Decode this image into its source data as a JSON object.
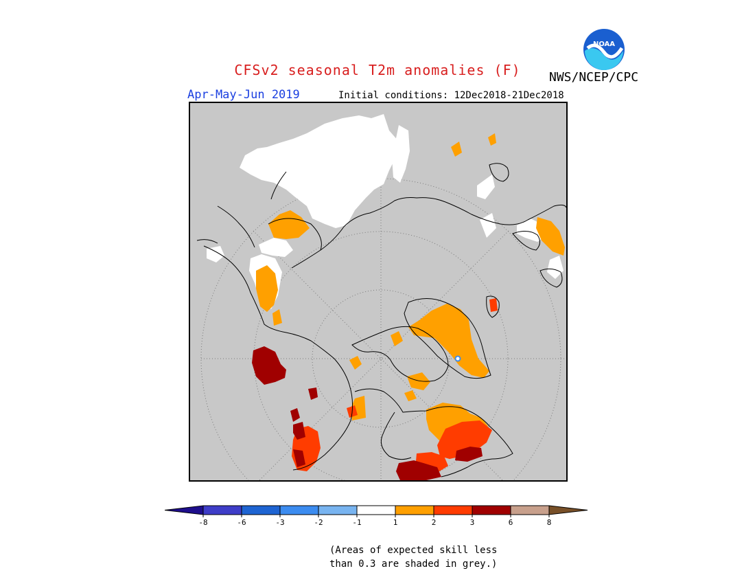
{
  "title": "CFSv2 seasonal T2m anomalies (F)",
  "agency": "NWS/NCEP/CPC",
  "logo_text": "NOAA",
  "season": "Apr-May-Jun 2019",
  "initial_conditions": "Initial conditions: 12Dec2018-21Dec2018",
  "note_line1": "(Areas of expected skill less",
  "note_line2": "than 0.3 are shaded in grey.)",
  "colors": {
    "background_grey": "#c8c8c8",
    "coast": "#000000",
    "title_red": "#d81e1e",
    "season_blue": "#1a3fe0"
  },
  "legend": {
    "labels": [
      "-8",
      "-6",
      "-3",
      "-2",
      "-1",
      "1",
      "2",
      "3",
      "6",
      "8"
    ],
    "colors": [
      "#1e0e8c",
      "#3e3dc8",
      "#1e64d2",
      "#3c8cf0",
      "#78b4f0",
      "#ffffff",
      "#ffa000",
      "#ff3c00",
      "#a00000",
      "#c8a08c",
      "#785028"
    ]
  }
}
